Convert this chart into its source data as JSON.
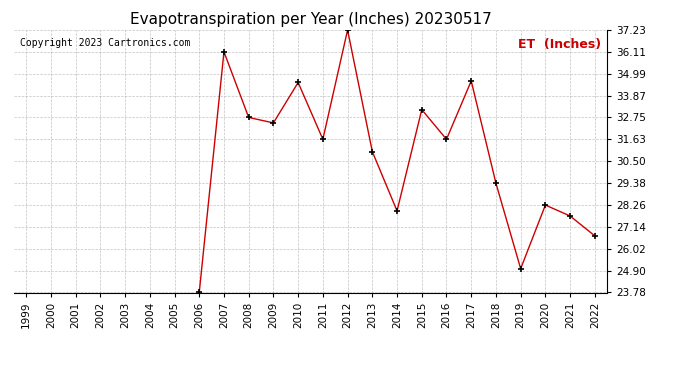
{
  "title": "Evapotranspiration per Year (Inches) 20230517",
  "copyright": "Copyright 2023 Cartronics.com",
  "legend_label": "ET  (Inches)",
  "years": [
    1999,
    2000,
    2001,
    2002,
    2003,
    2004,
    2005,
    2006,
    2007,
    2008,
    2009,
    2010,
    2011,
    2012,
    2013,
    2014,
    2015,
    2016,
    2017,
    2018,
    2019,
    2020,
    2021,
    2022
  ],
  "values": [
    null,
    null,
    null,
    null,
    null,
    null,
    null,
    23.78,
    36.11,
    32.75,
    32.47,
    34.54,
    31.63,
    37.23,
    31.0,
    27.96,
    33.15,
    31.63,
    34.62,
    29.38,
    25.0,
    28.26,
    27.7,
    26.68
  ],
  "line_color": "#cc0000",
  "marker_color": "#000000",
  "marker": "+",
  "yticks": [
    23.78,
    24.9,
    26.02,
    27.14,
    28.26,
    29.38,
    30.5,
    31.63,
    32.75,
    33.87,
    34.99,
    36.11,
    37.23
  ],
  "ylim": [
    23.78,
    37.23
  ],
  "background_color": "#ffffff",
  "grid_color": "#aaaaaa",
  "title_fontsize": 11,
  "copyright_fontsize": 7,
  "legend_fontsize": 9,
  "tick_fontsize": 7.5
}
